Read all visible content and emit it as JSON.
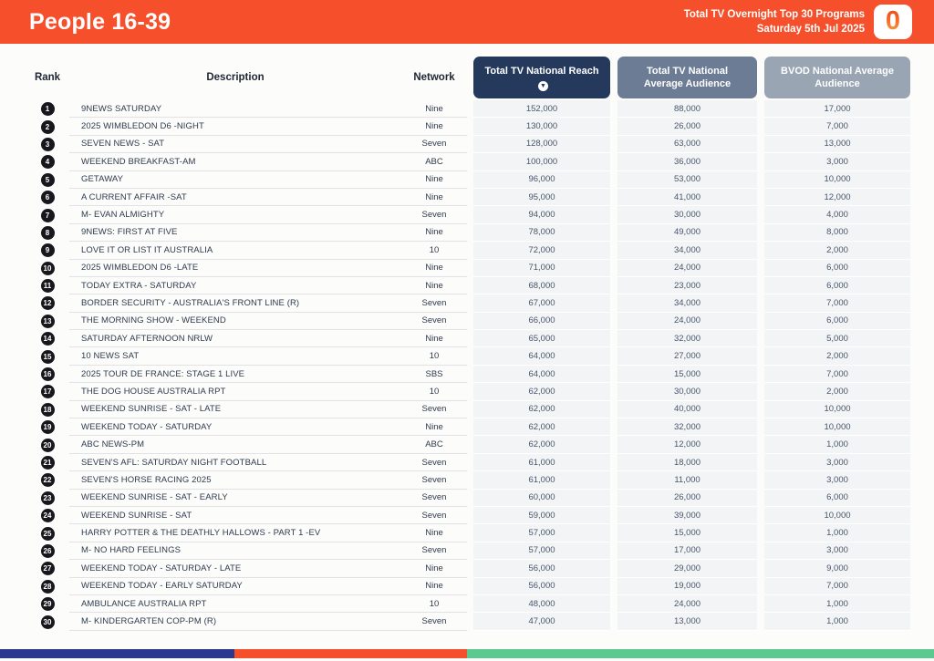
{
  "header": {
    "title": "People 16-39",
    "subtitle_line1": "Total TV Overnight Top 30 Programs",
    "subtitle_line2": "Saturday 5th Jul 2025",
    "logo_glyph": "0",
    "banner_color": "#F5502B"
  },
  "table": {
    "columns": {
      "rank": "Rank",
      "description": "Description",
      "network": "Network",
      "reach": "Total TV National Reach",
      "avg_audience": "Total TV National Average Audience",
      "bvod_avg_audience": "BVOD National Average Audience"
    },
    "sort": {
      "column": "reach",
      "direction": "descending",
      "icon": "arrow-down-circle"
    },
    "header_colors": {
      "reach": "#24395C",
      "avg_audience": "#6B7C94",
      "bvod_avg_audience": "#9AA5B3"
    },
    "rows": [
      {
        "rank": "1",
        "description": "9NEWS SATURDAY",
        "network": "Nine",
        "reach": "152,000",
        "avg": "88,000",
        "bvod": "17,000"
      },
      {
        "rank": "2",
        "description": "2025 WIMBLEDON D6 -NIGHT",
        "network": "Nine",
        "reach": "130,000",
        "avg": "26,000",
        "bvod": "7,000"
      },
      {
        "rank": "3",
        "description": "SEVEN NEWS - SAT",
        "network": "Seven",
        "reach": "128,000",
        "avg": "63,000",
        "bvod": "13,000"
      },
      {
        "rank": "4",
        "description": "WEEKEND BREAKFAST-AM",
        "network": "ABC",
        "reach": "100,000",
        "avg": "36,000",
        "bvod": "3,000"
      },
      {
        "rank": "5",
        "description": "GETAWAY",
        "network": "Nine",
        "reach": "96,000",
        "avg": "53,000",
        "bvod": "10,000"
      },
      {
        "rank": "6",
        "description": "A CURRENT AFFAIR -SAT",
        "network": "Nine",
        "reach": "95,000",
        "avg": "41,000",
        "bvod": "12,000"
      },
      {
        "rank": "7",
        "description": "M- EVAN ALMIGHTY",
        "network": "Seven",
        "reach": "94,000",
        "avg": "30,000",
        "bvod": "4,000"
      },
      {
        "rank": "8",
        "description": "9NEWS: FIRST AT FIVE",
        "network": "Nine",
        "reach": "78,000",
        "avg": "49,000",
        "bvod": "8,000"
      },
      {
        "rank": "9",
        "description": "LOVE IT OR LIST IT AUSTRALIA",
        "network": "10",
        "reach": "72,000",
        "avg": "34,000",
        "bvod": "2,000"
      },
      {
        "rank": "10",
        "description": "2025 WIMBLEDON D6 -LATE",
        "network": "Nine",
        "reach": "71,000",
        "avg": "24,000",
        "bvod": "6,000"
      },
      {
        "rank": "11",
        "description": "TODAY EXTRA - SATURDAY",
        "network": "Nine",
        "reach": "68,000",
        "avg": "23,000",
        "bvod": "6,000"
      },
      {
        "rank": "12",
        "description": "BORDER SECURITY - AUSTRALIA'S FRONT LINE (R)",
        "network": "Seven",
        "reach": "67,000",
        "avg": "34,000",
        "bvod": "7,000"
      },
      {
        "rank": "13",
        "description": "THE MORNING SHOW - WEEKEND",
        "network": "Seven",
        "reach": "66,000",
        "avg": "24,000",
        "bvod": "6,000"
      },
      {
        "rank": "14",
        "description": "SATURDAY AFTERNOON NRLW",
        "network": "Nine",
        "reach": "65,000",
        "avg": "32,000",
        "bvod": "5,000"
      },
      {
        "rank": "15",
        "description": "10 NEWS SAT",
        "network": "10",
        "reach": "64,000",
        "avg": "27,000",
        "bvod": "2,000"
      },
      {
        "rank": "16",
        "description": "2025 TOUR DE FRANCE: STAGE 1 LIVE",
        "network": "SBS",
        "reach": "64,000",
        "avg": "15,000",
        "bvod": "7,000"
      },
      {
        "rank": "17",
        "description": "THE DOG HOUSE AUSTRALIA RPT",
        "network": "10",
        "reach": "62,000",
        "avg": "30,000",
        "bvod": "2,000"
      },
      {
        "rank": "18",
        "description": "WEEKEND SUNRISE - SAT - LATE",
        "network": "Seven",
        "reach": "62,000",
        "avg": "40,000",
        "bvod": "10,000"
      },
      {
        "rank": "19",
        "description": "WEEKEND TODAY - SATURDAY",
        "network": "Nine",
        "reach": "62,000",
        "avg": "32,000",
        "bvod": "10,000"
      },
      {
        "rank": "20",
        "description": "ABC NEWS-PM",
        "network": "ABC",
        "reach": "62,000",
        "avg": "12,000",
        "bvod": "1,000"
      },
      {
        "rank": "21",
        "description": "SEVEN'S AFL: SATURDAY NIGHT FOOTBALL",
        "network": "Seven",
        "reach": "61,000",
        "avg": "18,000",
        "bvod": "3,000"
      },
      {
        "rank": "22",
        "description": "SEVEN'S HORSE RACING 2025",
        "network": "Seven",
        "reach": "61,000",
        "avg": "11,000",
        "bvod": "3,000"
      },
      {
        "rank": "23",
        "description": "WEEKEND SUNRISE - SAT - EARLY",
        "network": "Seven",
        "reach": "60,000",
        "avg": "26,000",
        "bvod": "6,000"
      },
      {
        "rank": "24",
        "description": "WEEKEND SUNRISE - SAT",
        "network": "Seven",
        "reach": "59,000",
        "avg": "39,000",
        "bvod": "10,000"
      },
      {
        "rank": "25",
        "description": "HARRY POTTER & THE DEATHLY HALLOWS - PART 1 -EV",
        "network": "Nine",
        "reach": "57,000",
        "avg": "15,000",
        "bvod": "1,000"
      },
      {
        "rank": "26",
        "description": "M- NO HARD FEELINGS",
        "network": "Seven",
        "reach": "57,000",
        "avg": "17,000",
        "bvod": "3,000"
      },
      {
        "rank": "27",
        "description": "WEEKEND TODAY - SATURDAY - LATE",
        "network": "Nine",
        "reach": "56,000",
        "avg": "29,000",
        "bvod": "9,000"
      },
      {
        "rank": "28",
        "description": "WEEKEND TODAY - EARLY SATURDAY",
        "network": "Nine",
        "reach": "56,000",
        "avg": "19,000",
        "bvod": "7,000"
      },
      {
        "rank": "29",
        "description": "AMBULANCE AUSTRALIA RPT",
        "network": "10",
        "reach": "48,000",
        "avg": "24,000",
        "bvod": "1,000"
      },
      {
        "rank": "30",
        "description": "M- KINDERGARTEN COP-PM (R)",
        "network": "Seven",
        "reach": "47,000",
        "avg": "13,000",
        "bvod": "1,000"
      }
    ]
  },
  "footer": {
    "bar_segments": [
      {
        "color": "#2B3890",
        "width_pct": 25.1
      },
      {
        "color": "#F5502B",
        "width_pct": 24.9
      },
      {
        "color": "#5CC98E",
        "width_pct": 50.0
      }
    ]
  }
}
